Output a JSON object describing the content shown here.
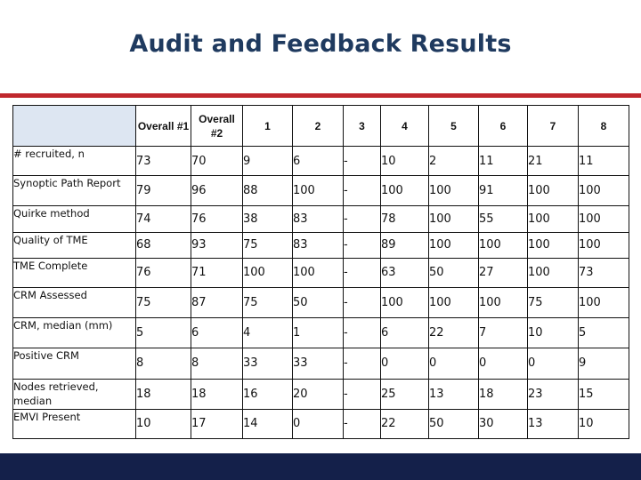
{
  "title": "Audit and Feedback Results",
  "table": {
    "headers": [
      "Overall #1",
      "Overall #2",
      "1",
      "2",
      "3",
      "4",
      "5",
      "6",
      "7",
      "8"
    ],
    "rows": [
      {
        "label": "# recruited, n",
        "values": [
          "73",
          "70",
          "9",
          "6",
          "-",
          "10",
          "2",
          "11",
          "21",
          "11"
        ]
      },
      {
        "label": "Synoptic Path Report",
        "values": [
          "79",
          "96",
          "88",
          "100",
          "-",
          "100",
          "100",
          "91",
          "100",
          "100"
        ]
      },
      {
        "label": "Quirke method",
        "values": [
          "74",
          "76",
          "38",
          "83",
          "-",
          "78",
          "100",
          "55",
          "100",
          "100"
        ]
      },
      {
        "label": "Quality of TME",
        "values": [
          "68",
          "93",
          "75",
          "83",
          "-",
          "89",
          "100",
          "100",
          "100",
          "100"
        ]
      },
      {
        "label": "TME Complete",
        "values": [
          "76",
          "71",
          "100",
          "100",
          "-",
          "63",
          "50",
          "27",
          "100",
          "73"
        ]
      },
      {
        "label": "CRM Assessed",
        "values": [
          "75",
          "87",
          "75",
          "50",
          "-",
          "100",
          "100",
          "100",
          "75",
          "100"
        ]
      },
      {
        "label": "CRM, median (mm)",
        "values": [
          "5",
          "6",
          "4",
          "1",
          "-",
          "6",
          "22",
          "7",
          "10",
          "5"
        ]
      },
      {
        "label": "Positive CRM",
        "values": [
          "8",
          "8",
          "33",
          "33",
          "-",
          "0",
          "0",
          "0",
          "0",
          "9"
        ]
      },
      {
        "label": "Nodes retrieved, median",
        "values": [
          "18",
          "18",
          "16",
          "20",
          "-",
          "25",
          "13",
          "18",
          "23",
          "15"
        ]
      },
      {
        "label": "EMVI Present",
        "values": [
          "10",
          "17",
          "14",
          "0",
          "-",
          "22",
          "50",
          "30",
          "13",
          "10"
        ]
      }
    ]
  }
}
